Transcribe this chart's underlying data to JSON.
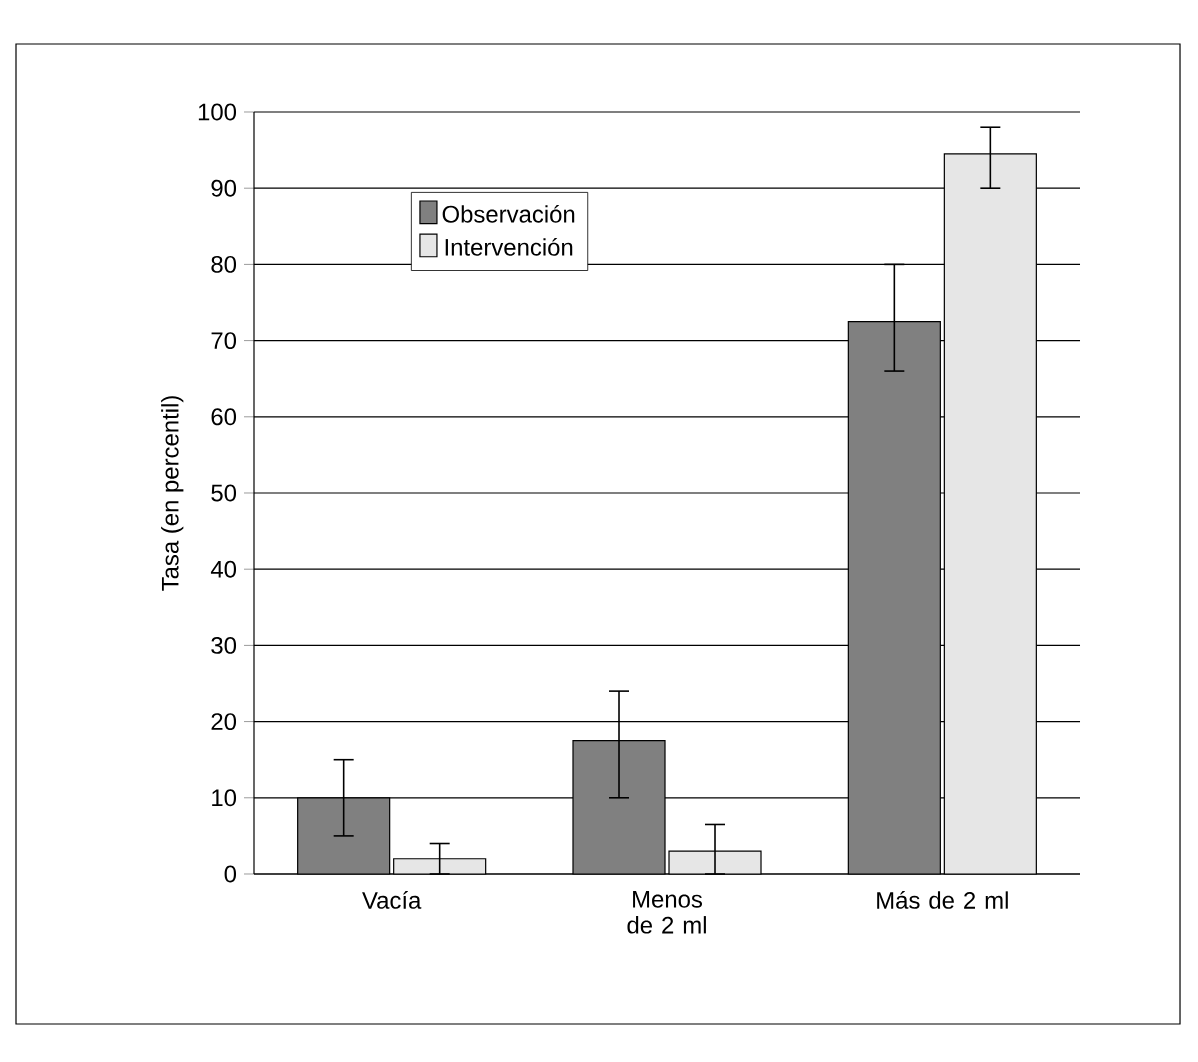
{
  "chart_data": {
    "type": "bar",
    "ylabel": "Tasa (en percentil)",
    "categories": [
      "Vacía",
      "Menos de 2 ml",
      "Más de 2 ml"
    ],
    "series": [
      {
        "name": "Observación",
        "color": "#808080",
        "values": [
          10,
          17.5,
          72.5
        ],
        "errors": [
          [
            5,
            15
          ],
          [
            10,
            24
          ],
          [
            66,
            80
          ]
        ]
      },
      {
        "name": "Intervención",
        "color": "#e6e6e6",
        "values": [
          2,
          3,
          94.5
        ],
        "errors": [
          [
            0,
            4
          ],
          [
            0,
            6.5
          ],
          [
            90,
            98
          ]
        ]
      }
    ],
    "ylim": [
      0,
      100
    ],
    "yticks": [
      0,
      10,
      20,
      30,
      40,
      50,
      60,
      70,
      80,
      90,
      100
    ],
    "grid": "y",
    "legend": "top left"
  }
}
